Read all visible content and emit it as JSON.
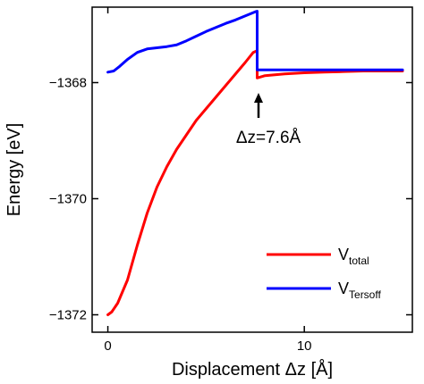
{
  "chart_data": {
    "type": "line",
    "xlabel": "Displacement Δz [Å]",
    "ylabel": "Energy [eV]",
    "xlim": [
      -0.8,
      15.5
    ],
    "ylim": [
      -1372.3,
      -1366.7
    ],
    "x_ticks": [
      0,
      10
    ],
    "x_tick_labels": [
      "0",
      "10"
    ],
    "y_ticks": [
      -1368,
      -1370,
      -1372
    ],
    "y_tick_labels": [
      "−1368",
      "−1370",
      "−1372"
    ],
    "grid": false,
    "legend_position": "lower-right",
    "annotation": {
      "text": "Δz=7.6Å",
      "x": 7.6,
      "y": -1367.95
    },
    "series": [
      {
        "name_main": "V",
        "name_sub": "total",
        "color": "#ff0000",
        "x": [
          0,
          0.2,
          0.5,
          1,
          1.5,
          2,
          2.5,
          3,
          3.5,
          4,
          4.5,
          5,
          5.5,
          6,
          6.5,
          7,
          7.4,
          7.6,
          7.6,
          8,
          9,
          10,
          11,
          12,
          13,
          14,
          15
        ],
        "y": [
          -1372.0,
          -1371.95,
          -1371.8,
          -1371.4,
          -1370.8,
          -1370.25,
          -1369.8,
          -1369.45,
          -1369.15,
          -1368.9,
          -1368.65,
          -1368.45,
          -1368.25,
          -1368.05,
          -1367.85,
          -1367.65,
          -1367.48,
          -1367.45,
          -1367.92,
          -1367.88,
          -1367.85,
          -1367.83,
          -1367.82,
          -1367.81,
          -1367.8,
          -1367.8,
          -1367.8
        ]
      },
      {
        "name_main": "V",
        "name_sub": "Tersoff",
        "color": "#0000ff",
        "x": [
          0,
          0.3,
          0.6,
          1,
          1.5,
          2,
          2.5,
          3,
          3.5,
          4,
          4.5,
          5,
          5.5,
          6,
          6.5,
          7,
          7.5,
          7.6,
          7.6,
          8,
          9,
          10,
          11,
          12,
          13,
          14,
          15
        ],
        "y": [
          -1367.82,
          -1367.8,
          -1367.72,
          -1367.6,
          -1367.48,
          -1367.42,
          -1367.4,
          -1367.38,
          -1367.35,
          -1367.28,
          -1367.2,
          -1367.12,
          -1367.05,
          -1366.98,
          -1366.92,
          -1366.85,
          -1366.78,
          -1366.77,
          -1367.78,
          -1367.78,
          -1367.78,
          -1367.78,
          -1367.78,
          -1367.78,
          -1367.78,
          -1367.78,
          -1367.78
        ]
      }
    ]
  }
}
